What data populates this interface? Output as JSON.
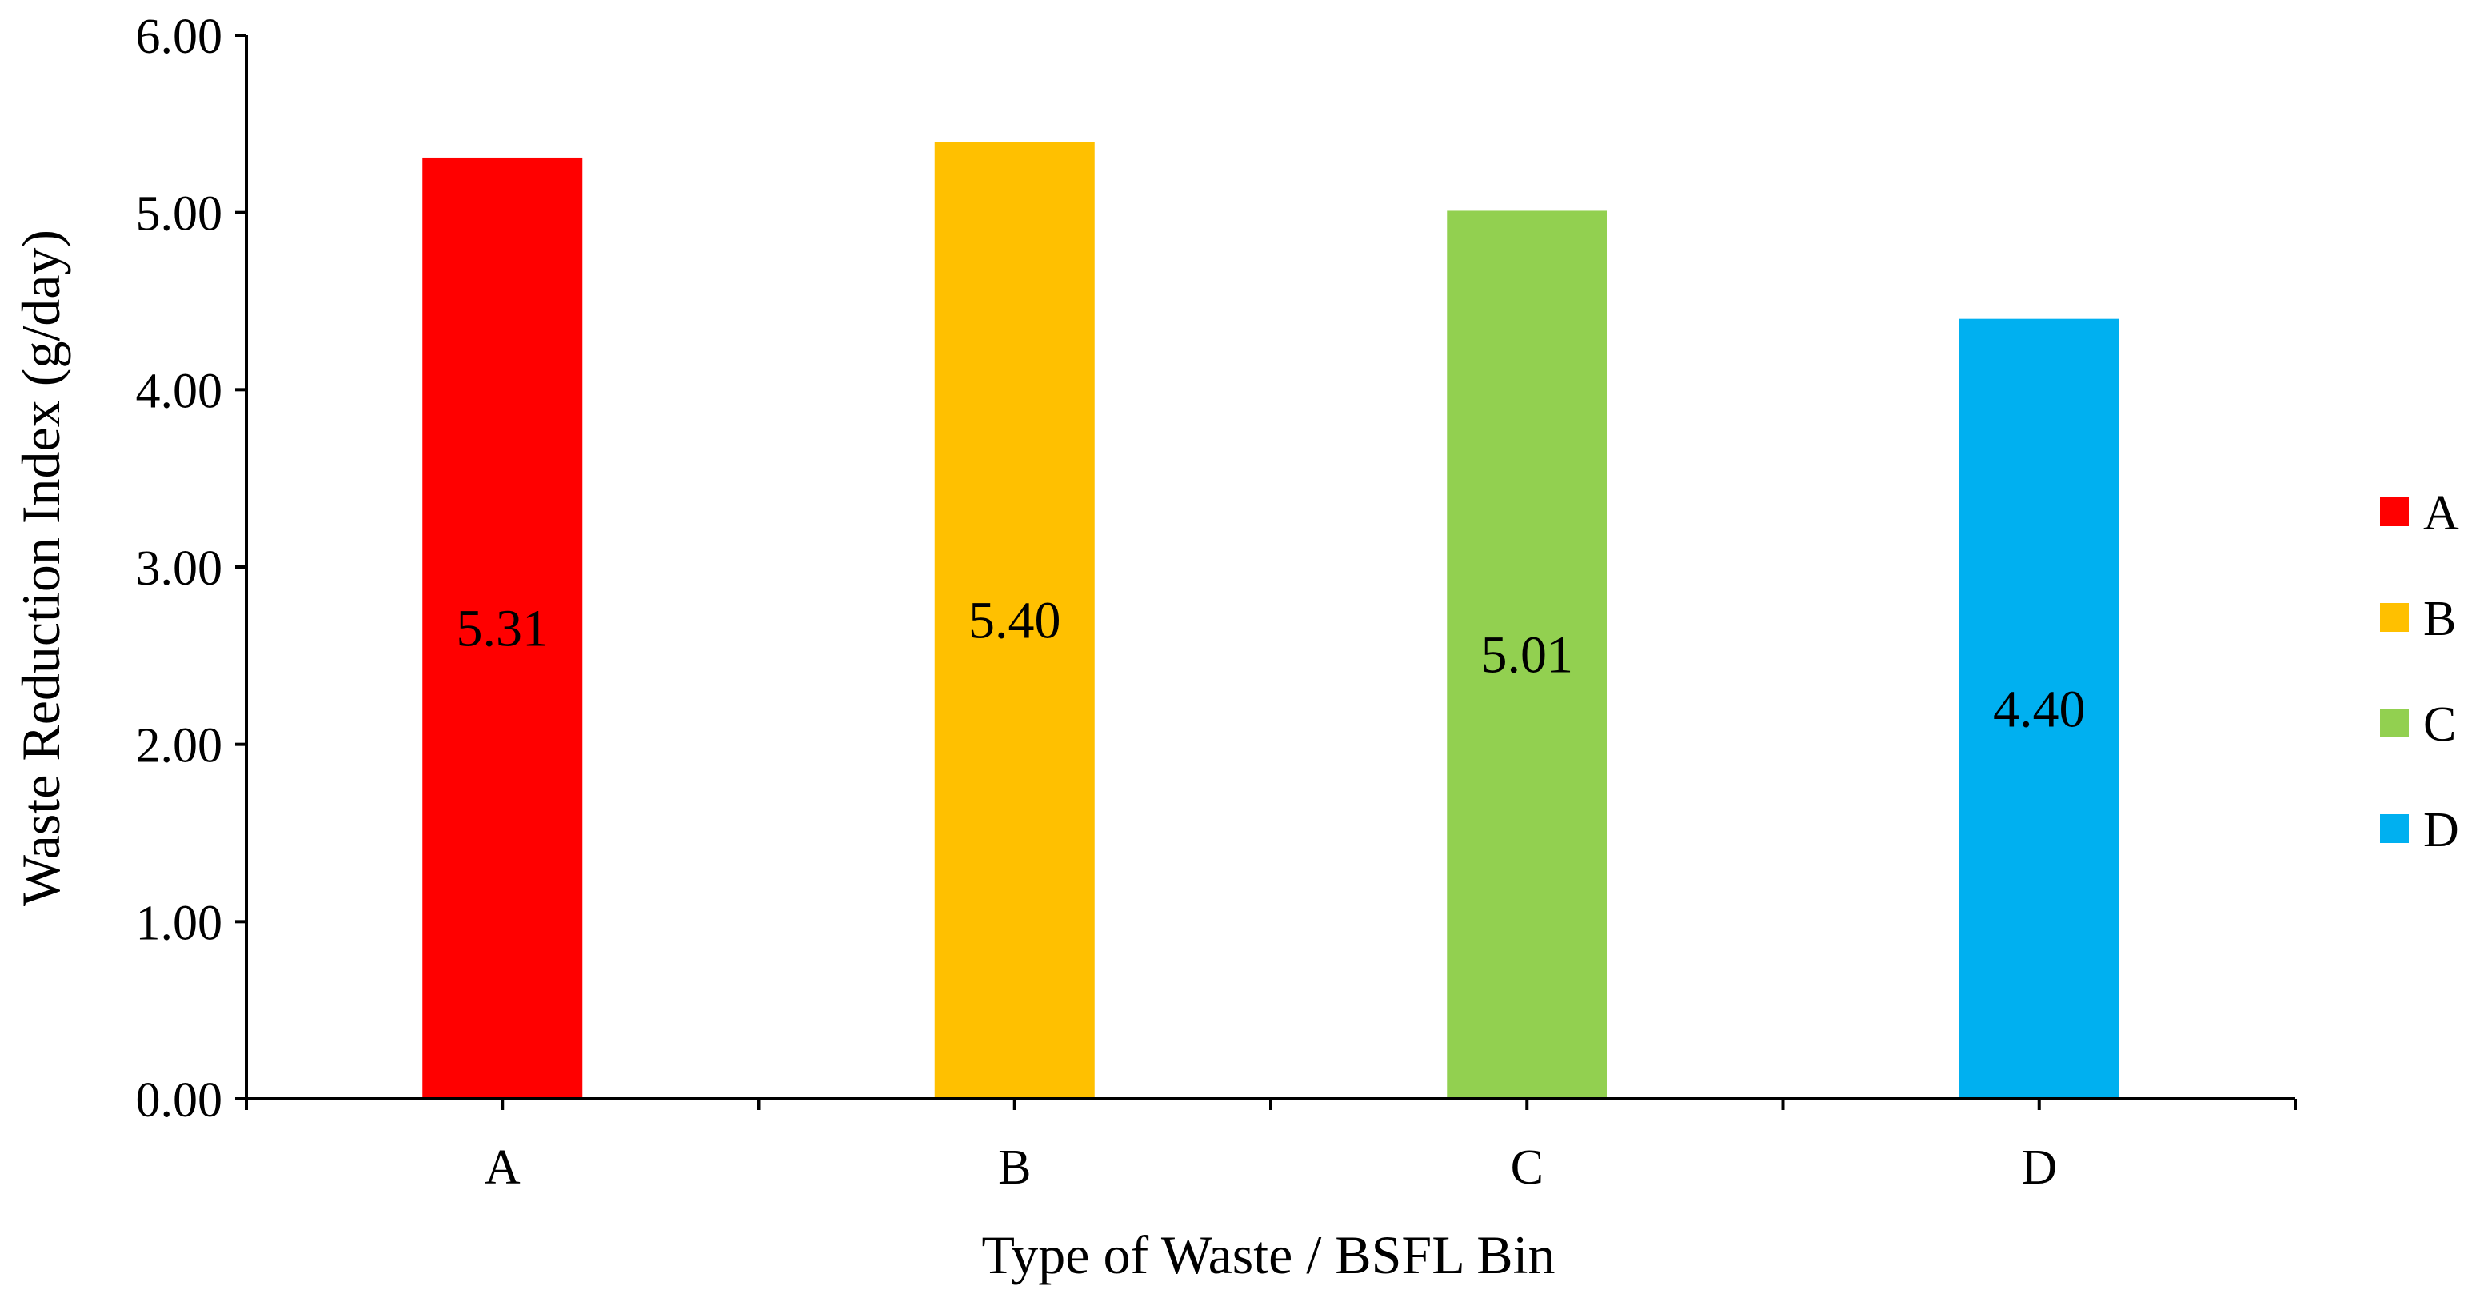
{
  "chart_data": {
    "type": "bar",
    "categories": [
      "A",
      "B",
      "C",
      "D"
    ],
    "values": [
      5.31,
      5.4,
      5.01,
      4.4
    ],
    "data_labels": [
      "5.31",
      "5.40",
      "5.01",
      "4.40"
    ],
    "colors": [
      "#FF0000",
      "#FFC000",
      "#92D050",
      "#00B0F0"
    ],
    "xlabel": "Type of Waste / BSFL Bin",
    "ylabel": "Waste Reduction Index (g/day)",
    "ylim": [
      0,
      6
    ],
    "yticks": [
      "0.00",
      "1.00",
      "2.00",
      "3.00",
      "4.00",
      "5.00",
      "6.00"
    ],
    "grid": false,
    "legend": {
      "position": "right",
      "entries": [
        "A",
        "B",
        "C",
        "D"
      ]
    }
  }
}
